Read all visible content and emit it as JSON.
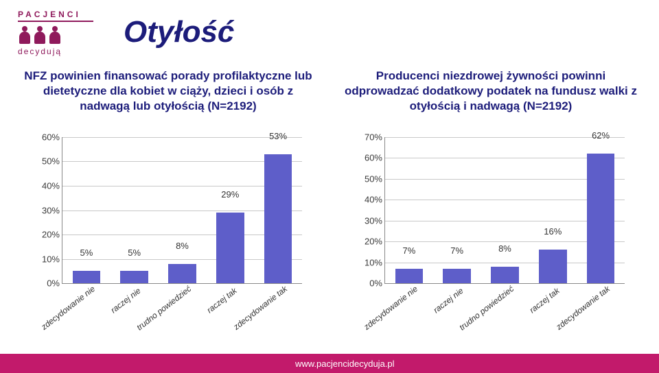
{
  "brand": {
    "top": "PACJENCI",
    "sub": "decydują",
    "color": "#8f1a5c"
  },
  "title": "Otyłość",
  "title_color": "#1c1c7a",
  "title_fontsize": 44,
  "questions": {
    "left": "NFZ powinien finansować porady profilaktyczne lub dietetyczne dla kobiet w ciąży, dzieci i osób z nadwagą lub otyłością (N=2192)",
    "right": "Producenci niezdrowej żywności powinni odprowadzać dodatkowy podatek na fundusz walki z otyłością i nadwagą (N=2192)",
    "color": "#1c1c7a",
    "fontsize": 17
  },
  "chart_left": {
    "type": "bar",
    "categories": [
      "zdecydowanie nie",
      "raczej nie",
      "trudno powiedzieć",
      "raczej tak",
      "zdecydowanie tak"
    ],
    "values": [
      5,
      5,
      8,
      29,
      53
    ],
    "bar_color": "#5e5ec9",
    "grid_color": "#c8c8c8",
    "axis_color": "#888888",
    "ylim": [
      0,
      60
    ],
    "ytick_step": 10,
    "bar_width": 0.58,
    "label_fontsize": 13,
    "xlabel_fontsize": 12,
    "xlabel_rotation_deg": -38,
    "background_color": "#ffffff"
  },
  "chart_right": {
    "type": "bar",
    "categories": [
      "zdecydowanie nie",
      "raczej nie",
      "trudno powiedzieć",
      "raczej tak",
      "zdecydowanie tak"
    ],
    "values": [
      7,
      7,
      8,
      16,
      62
    ],
    "bar_color": "#5e5ec9",
    "grid_color": "#c8c8c8",
    "axis_color": "#888888",
    "ylim": [
      0,
      70
    ],
    "ytick_step": 10,
    "bar_width": 0.58,
    "label_fontsize": 13,
    "xlabel_fontsize": 12,
    "xlabel_rotation_deg": -38,
    "background_color": "#ffffff"
  },
  "footer": {
    "url": "www.pacjencidecyduja.pl",
    "bg_color": "#c21a6b",
    "text_color": "#ffffff"
  }
}
